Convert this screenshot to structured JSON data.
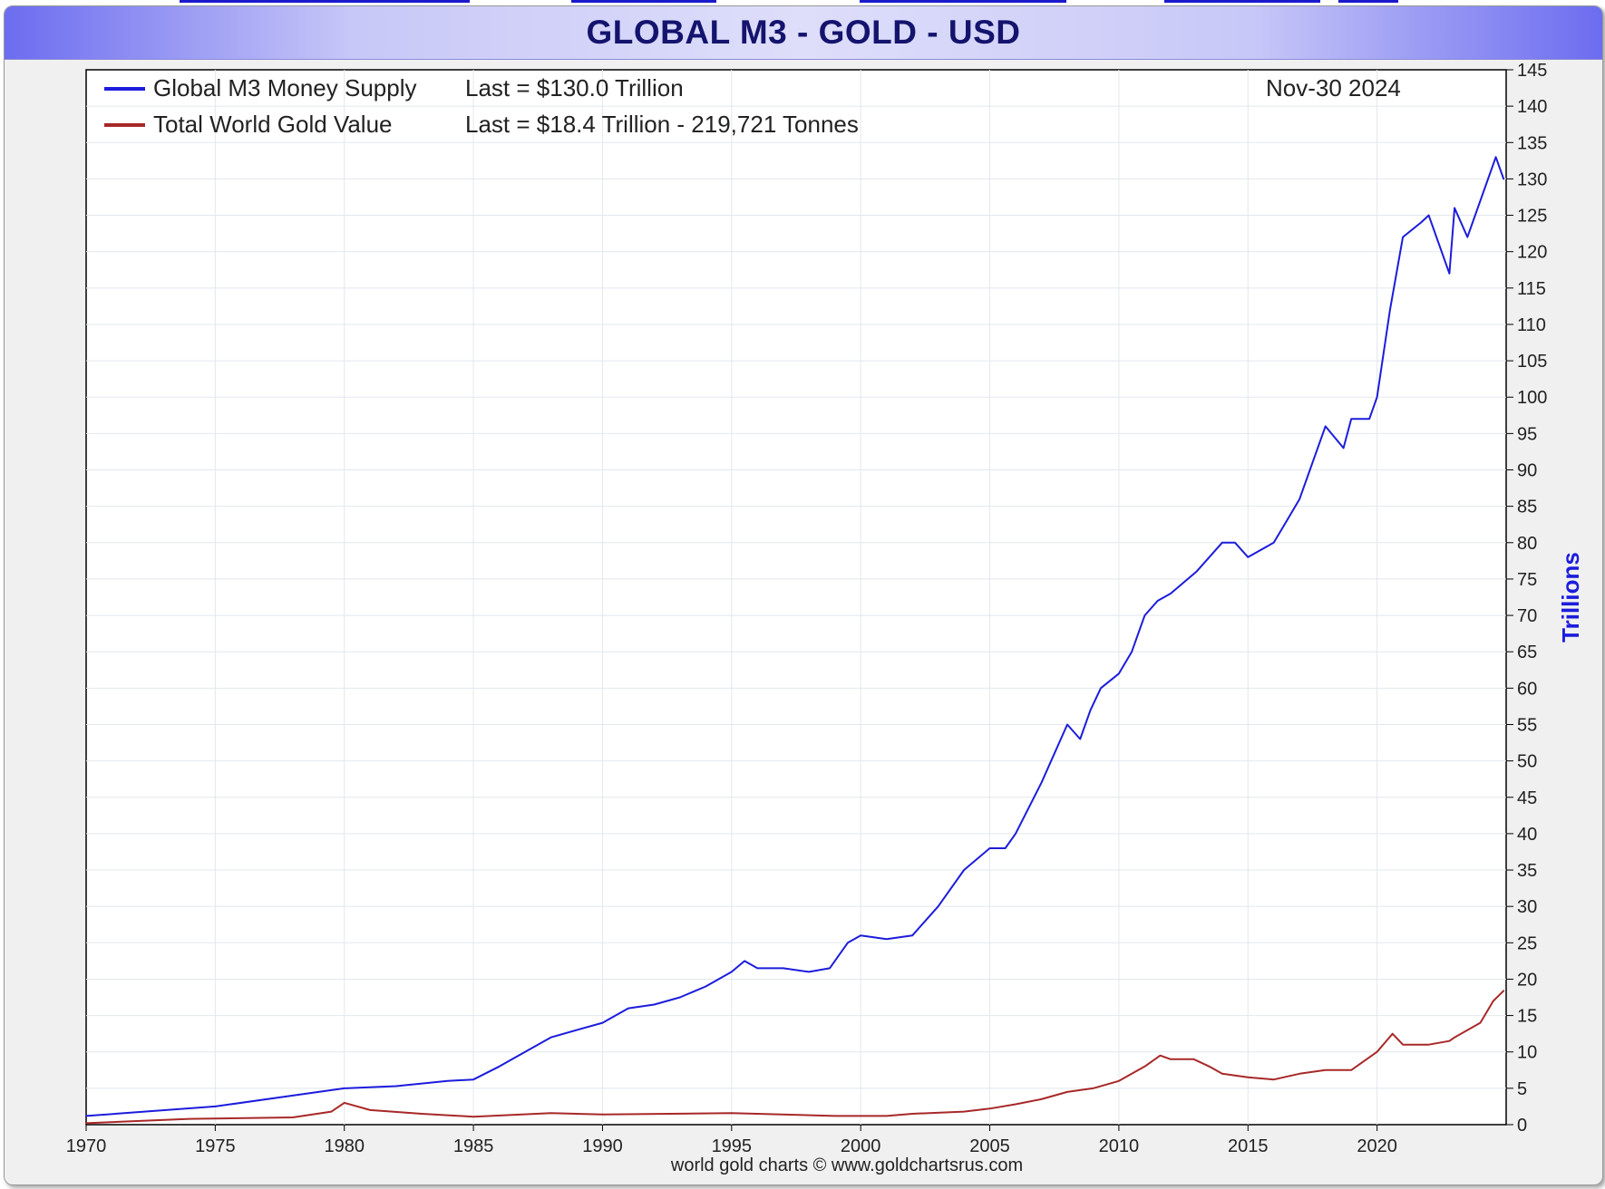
{
  "chart_data": {
    "type": "line",
    "title": "GLOBAL M3 - GOLD - USD",
    "ylabel": "Trillions",
    "xlabel": "",
    "date_label": "Nov-30  2024",
    "credit": "world gold charts © www.goldchartsrus.com",
    "xlim": [
      1970,
      2025
    ],
    "ylim": [
      0,
      145
    ],
    "x_ticks": [
      1970,
      1975,
      1980,
      1985,
      1990,
      1995,
      2000,
      2005,
      2010,
      2015,
      2020
    ],
    "y_ticks": [
      0,
      5,
      10,
      15,
      20,
      25,
      30,
      35,
      40,
      45,
      50,
      55,
      60,
      65,
      70,
      75,
      80,
      85,
      90,
      95,
      100,
      105,
      110,
      115,
      120,
      125,
      130,
      135,
      140,
      145
    ],
    "grid": true,
    "legend_position": "top-left",
    "series": [
      {
        "name": "Global M3 Money Supply",
        "legend_note": "Last = $130.0 Trillion",
        "color": "#1c1cdc",
        "x": [
          1970,
          1975,
          1978,
          1980,
          1982,
          1984,
          1985,
          1986,
          1987,
          1988,
          1989,
          1990,
          1991,
          1992,
          1993,
          1994,
          1995,
          1995.5,
          1996,
          1997,
          1998,
          1998.8,
          1999.5,
          2000,
          2001,
          2002,
          2003,
          2004,
          2005,
          2005.6,
          2006,
          2007,
          2008,
          2008.5,
          2008.9,
          2009.3,
          2010,
          2010.5,
          2011,
          2011.5,
          2012,
          2013,
          2014,
          2014.5,
          2015,
          2016,
          2016.5,
          2017,
          2018,
          2018.7,
          2019,
          2019.7,
          2020,
          2020.5,
          2021,
          2021.7,
          2022,
          2022.8,
          2023,
          2023.5,
          2024,
          2024.6,
          2024.9
        ],
        "y": [
          1.2,
          2.5,
          4,
          5,
          5.3,
          6,
          6.2,
          8,
          10,
          12,
          13,
          14,
          16,
          16.5,
          17.5,
          19,
          21,
          22.5,
          21.5,
          21.5,
          21,
          21.5,
          25,
          26,
          25.5,
          26,
          30,
          35,
          38,
          38,
          40,
          47,
          55,
          53,
          57,
          60,
          62,
          65,
          70,
          72,
          73,
          76,
          80,
          80,
          78,
          80,
          83,
          86,
          96,
          93,
          97,
          97,
          100,
          112,
          122,
          124,
          125,
          117,
          126,
          122,
          127,
          133,
          130
        ]
      },
      {
        "name": "Total World Gold Value",
        "legend_note": "Last = $18.4 Trillion - 219,721 Tonnes",
        "color": "#a82828",
        "x": [
          1970,
          1974,
          1978,
          1979.5,
          1980,
          1981,
          1983,
          1985,
          1988,
          1990,
          1995,
          1999,
          2001,
          2002,
          2004,
          2005,
          2006,
          2007,
          2008,
          2009,
          2010,
          2011,
          2011.6,
          2012,
          2012.9,
          2013.5,
          2014,
          2015,
          2016,
          2017,
          2018,
          2019,
          2020,
          2020.6,
          2021,
          2022,
          2022.8,
          2023,
          2024,
          2024.5,
          2024.9
        ],
        "y": [
          0.2,
          0.8,
          1,
          1.8,
          3,
          2,
          1.5,
          1.1,
          1.6,
          1.4,
          1.6,
          1.2,
          1.2,
          1.5,
          1.8,
          2.2,
          2.8,
          3.5,
          4.5,
          5,
          6,
          8,
          9.5,
          9,
          9,
          8,
          7,
          6.5,
          6.2,
          7,
          7.5,
          7.5,
          10,
          12.5,
          11,
          11,
          11.5,
          12,
          14,
          17,
          18.4
        ]
      }
    ]
  }
}
